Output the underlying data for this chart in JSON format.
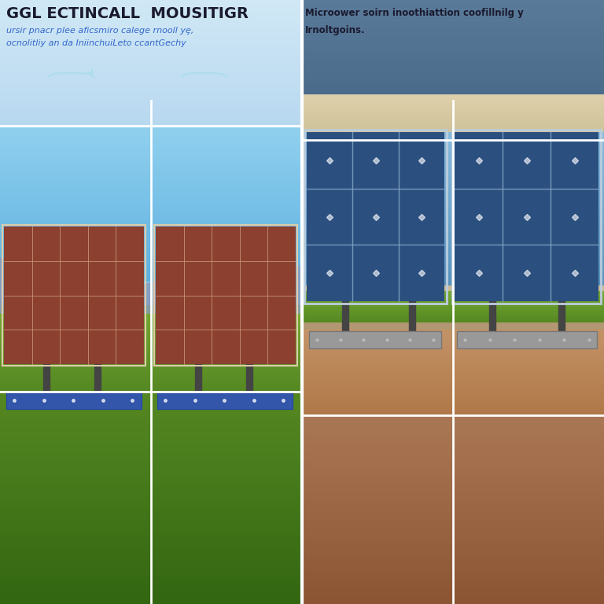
{
  "title_left": "GGL ECTINCALL  MOUSITIGR",
  "subtitle_left_line1": "ursir pnacr plee aficsmiro calege rnooll yȩ,",
  "subtitle_left_line2": "ocnolitliy an da IniinchuiLeto ccantGechy",
  "title_right": "Microower soirn inoothiattion coofillnilg y",
  "subtitle_right": "Irnoltgoins.",
  "left_header_bg": "#C8DFF0",
  "right_header_top_bg": "#5B7FA0",
  "right_header_label_bg": "#D8C8A8",
  "sky_left_top": "#85C8E8",
  "sky_left_bottom": "#60B0E0",
  "sky_right_top": "#7AAAC8",
  "sky_right_bottom": "#5590B8",
  "mountain_left_color": "#8899BB",
  "mountain_right_color": "#AA9977",
  "ground_left_top": "#88AA44",
  "ground_left_bottom": "#558822",
  "ground_right_top": "#C4956A",
  "ground_right_bottom": "#A06840",
  "panel_left_color": "#8B4030",
  "panel_left_grid": "#CC9977",
  "panel_left_frame": "#DDCCAA",
  "panel_right_color": "#2B5080",
  "panel_right_grid": "#8AAAC8",
  "panel_right_frame": "#BBCCDD",
  "inverter_left_color": "#3355AA",
  "inverter_right_color": "#999999",
  "pole_color": "#444444",
  "bracket_color": "#555555",
  "text_left_title": "#1A1A2E",
  "text_left_sub": "#3366CC",
  "text_right": "#1A1A2E",
  "white": "#FFFFFF",
  "arrow_color": "#AADDEE"
}
